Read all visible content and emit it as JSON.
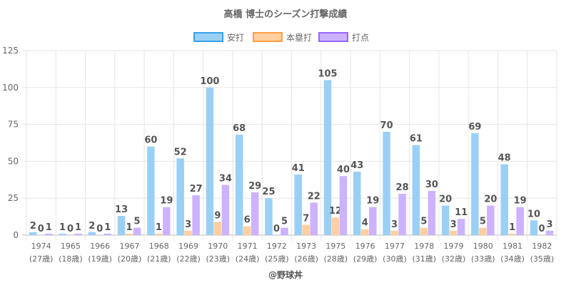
{
  "chart_data": {
    "type": "bar",
    "title": "高橋 博士のシーズン打撃成績",
    "categories": [
      "1974",
      "1965",
      "1966",
      "1967",
      "1968",
      "1969",
      "1970",
      "1971",
      "1972",
      "1973",
      "1975",
      "1976",
      "1977",
      "1978",
      "1979",
      "1980",
      "1981",
      "1982"
    ],
    "category_sublabels": [
      "(27歳)",
      "(18歳)",
      "(19歳)",
      "(20歳)",
      "(21歳)",
      "(22歳)",
      "(23歳)",
      "(24歳)",
      "(25歳)",
      "(26歳)",
      "(28歳)",
      "(29歳)",
      "(30歳)",
      "(31歳)",
      "(32歳)",
      "(33歳)",
      "(34歳)",
      "(35歳)"
    ],
    "series": [
      {
        "name": "安打",
        "color": "#9ad0f5",
        "border": "#36a2eb",
        "values": [
          2,
          1,
          2,
          13,
          60,
          52,
          100,
          68,
          25,
          41,
          105,
          43,
          70,
          61,
          20,
          69,
          48,
          10
        ]
      },
      {
        "name": "本塁打",
        "color": "#ffcf9f",
        "border": "#ff9f40",
        "values": [
          0,
          0,
          0,
          1,
          1,
          3,
          9,
          6,
          0,
          7,
          12,
          4,
          3,
          5,
          3,
          5,
          1,
          0
        ]
      },
      {
        "name": "打点",
        "color": "#ccb2ff",
        "border": "#9966ff",
        "values": [
          1,
          1,
          1,
          5,
          19,
          27,
          34,
          29,
          5,
          22,
          40,
          19,
          28,
          30,
          11,
          20,
          19,
          3
        ]
      }
    ],
    "ylim": [
      0,
      125
    ],
    "yticks": [
      0,
      25,
      50,
      75,
      100,
      125
    ],
    "grid": true,
    "legend": "top",
    "xlabel": "",
    "ylabel": ""
  },
  "footer": "@野球丼"
}
